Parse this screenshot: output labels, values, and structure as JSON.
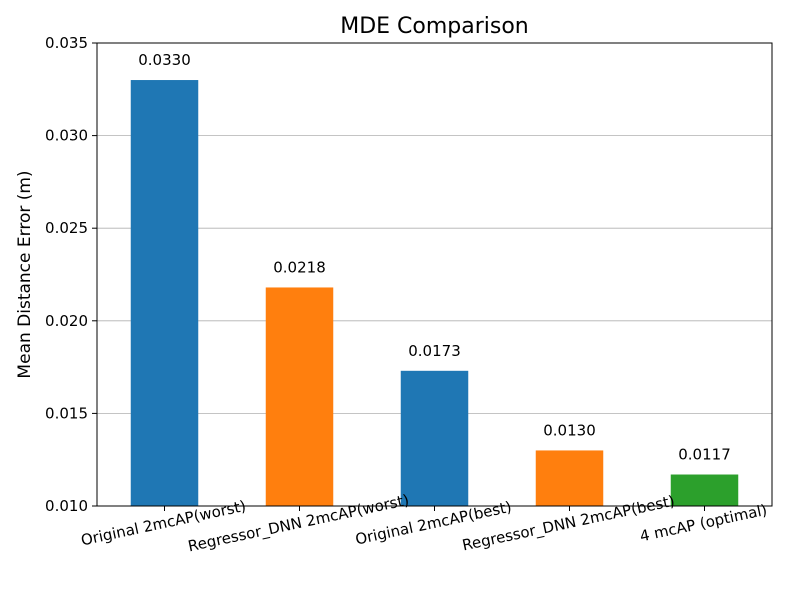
{
  "chart_data": {
    "type": "bar",
    "title": "MDE Comparison",
    "xlabel": "",
    "ylabel": "Mean Distance Error (m)",
    "categories": [
      "Original 2mcAP(worst)",
      "Regressor_DNN 2mcAP(worst)",
      "Original 2mcAP(best)",
      "Regressor_DNN 2mcAP(best)",
      "4 mcAP (optimal)"
    ],
    "values": [
      0.033,
      0.0218,
      0.0173,
      0.013,
      0.0117
    ],
    "value_labels": [
      "0.0330",
      "0.0218",
      "0.0173",
      "0.0130",
      "0.0117"
    ],
    "bar_colors": [
      "#1f77b4",
      "#ff7f0e",
      "#1f77b4",
      "#ff7f0e",
      "#2ca02c"
    ],
    "ylim": [
      0.01,
      0.035
    ],
    "yticks": [
      0.01,
      0.015,
      0.02,
      0.025,
      0.03,
      0.035
    ],
    "ytick_labels": [
      "0.010",
      "0.015",
      "0.020",
      "0.025",
      "0.030",
      "0.035"
    ],
    "x_tick_rotation_deg": 12,
    "grid": "y-axis on"
  }
}
